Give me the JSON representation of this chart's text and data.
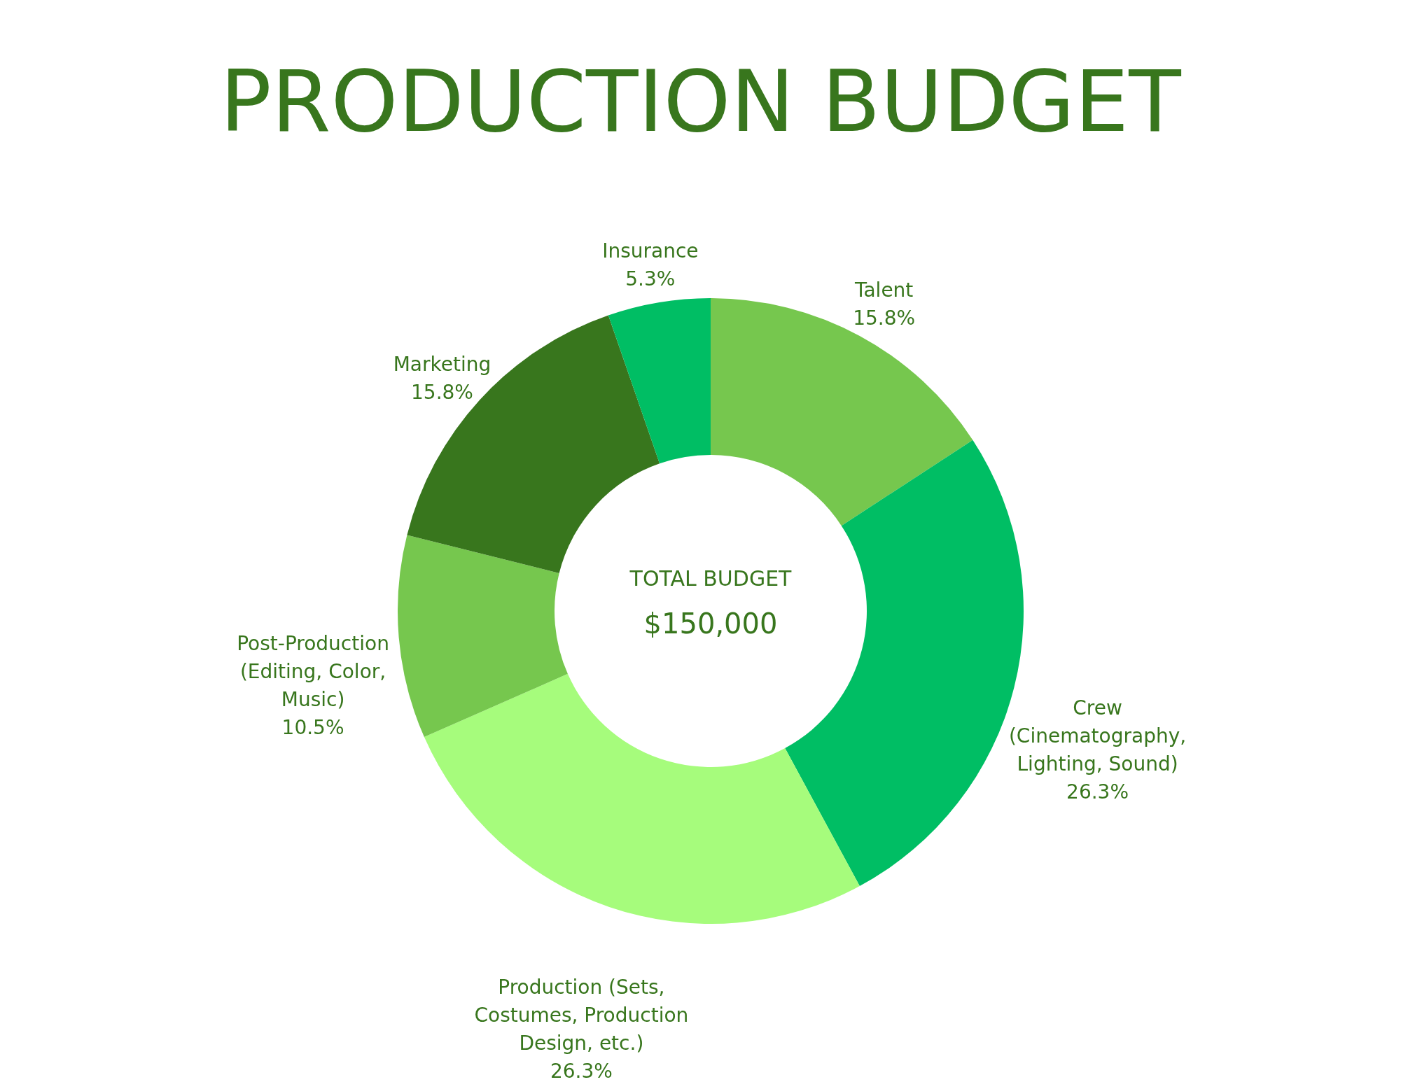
{
  "chart_data": {
    "type": "donut",
    "title": "PRODUCTION BUDGET",
    "categories": [
      "Talent",
      "Crew (Cinematography, Lighting, Sound)",
      "Production (Sets, Costumes, Production Design, etc.)",
      "Post-Production (Editing, Color, Music)",
      "Marketing",
      "Insurance"
    ],
    "values": [
      15.8,
      26.3,
      26.3,
      10.5,
      15.8,
      5.3
    ],
    "value_labels": [
      "15.8%",
      "26.3%",
      "26.3%",
      "10.5%",
      "15.8%",
      "5.3%"
    ],
    "colors": [
      "#76c74e",
      "#00be64",
      "#a6fc7c",
      "#76c74e",
      "#38761d",
      "#00be64"
    ],
    "annotations": [
      "TOTAL BUDGET",
      "$150,000"
    ]
  }
}
